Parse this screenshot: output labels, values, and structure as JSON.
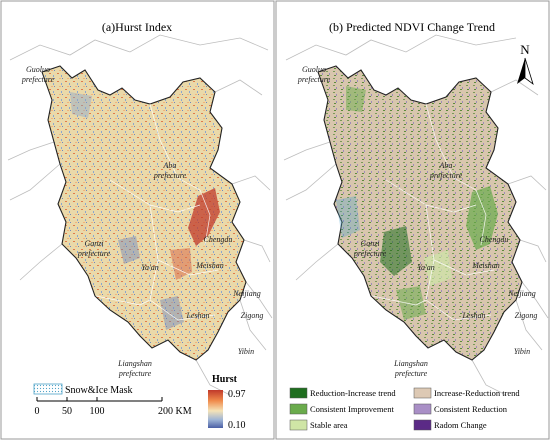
{
  "panels": [
    {
      "title": "(a)Hurst Index"
    },
    {
      "title": "(b) Predicted NDVI Change Trend"
    }
  ],
  "labels_a": {
    "guoluo": "Guoluo",
    "guoluo2": "prefecture",
    "aba": "Aba",
    "aba2": "prefecture",
    "ganzi": "Ganzi",
    "ganzi2": "prefecture",
    "chengdu": "Chengdu",
    "yaan": "Ya'an",
    "meishan": "Meishan",
    "leshan": "Leshan",
    "neijiang": "Neijiang",
    "zigong": "Zigong",
    "yibin": "Yibin",
    "liangshan": "Liangshan",
    "liangshan2": "prefecture"
  },
  "labels_b": {
    "guoluo": "Guoluo",
    "guoluo2": "prefecture",
    "aba": "Aba",
    "aba2": "prefecture",
    "ganzi": "Ganzi",
    "ganzi2": "prefecture",
    "chengdu": "Chengdu",
    "yaan": "Ya'an",
    "meishan": "Meishan",
    "leshan": "Leshan",
    "neijiang": "Neijiang",
    "zigong": "Zigong",
    "yibin": "Yibin",
    "liangshan": "Liangshan",
    "liangshan2": "prefecture"
  },
  "legend_a": {
    "snow_mask": "Snow&Ice Mask",
    "scale_ticks": [
      "0",
      "50",
      "100",
      "200 KM"
    ],
    "hurst_title": "Hurst",
    "hurst_max": "0.97",
    "hurst_min": "0.10",
    "ramp_colors": [
      "#c0392b",
      "#f08a4b",
      "#f4e3b8",
      "#9fb5d6",
      "#4a5fa5"
    ]
  },
  "north_arrow": "N",
  "legend_b": {
    "items": [
      {
        "label": "Reduction-Increase trend",
        "color": "#1f6e1f"
      },
      {
        "label": "Increase-Reduction trend",
        "color": "#ddc9b4"
      },
      {
        "label": "Consistent Improvement",
        "color": "#6aab4c"
      },
      {
        "label": "Consistent Reduction",
        "color": "#a98fc6"
      },
      {
        "label": "Stable area",
        "color": "#cfe5a6"
      },
      {
        "label": "Radom Change",
        "color": "#5b2a86"
      }
    ]
  },
  "colors": {
    "region_a": "#ecdcae",
    "region_b": "#d8c6ad",
    "boundary": "#aaaaaa",
    "outline": "#222222"
  }
}
